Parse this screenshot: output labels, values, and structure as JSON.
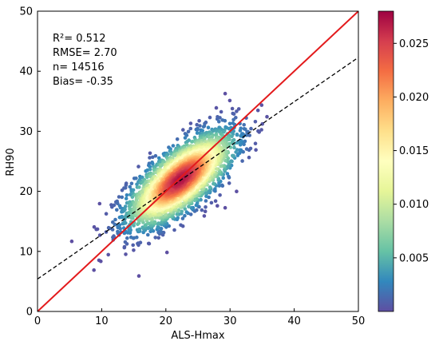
{
  "chart_data": {
    "type": "scatter",
    "xlabel": "ALS-Hmax",
    "ylabel": "RH90",
    "xlim": [
      0,
      50
    ],
    "ylim": [
      0,
      50
    ],
    "xticks": [
      "0",
      "10",
      "20",
      "30",
      "40",
      "50"
    ],
    "yticks": [
      "0",
      "10",
      "20",
      "30",
      "40",
      "50"
    ],
    "grid": false,
    "stats": [
      "R²= 0.512",
      "RMSE= 2.70",
      "n= 14516",
      "Bias= -0.35"
    ],
    "one_to_one_line": {
      "x": [
        0,
        50
      ],
      "y": [
        0,
        50
      ],
      "color": "#e31a1c",
      "style": "solid"
    },
    "fit_line": {
      "x": [
        0,
        50
      ],
      "y": [
        5.4,
        42.3
      ],
      "color": "#000000",
      "style": "dashed"
    },
    "density_center": {
      "x": 22.3,
      "y": 22.0
    },
    "density_spread": {
      "sx": 4.2,
      "sy": 4.0,
      "corr": 0.72
    },
    "point_count": 14516,
    "colorbar": {
      "colormap": "Spectral_r",
      "range": [
        0,
        0.028
      ],
      "ticks": [
        "0.005",
        "0.010",
        "0.015",
        "0.020",
        "0.025"
      ],
      "tick_values": [
        0.005,
        0.01,
        0.015,
        0.02,
        0.025
      ]
    },
    "colors": {
      "low": "#5e4fa2",
      "mid": "#ffffbf",
      "high": "#9e0142",
      "one_to_one": "#e31a1c",
      "fit": "#000000"
    }
  }
}
